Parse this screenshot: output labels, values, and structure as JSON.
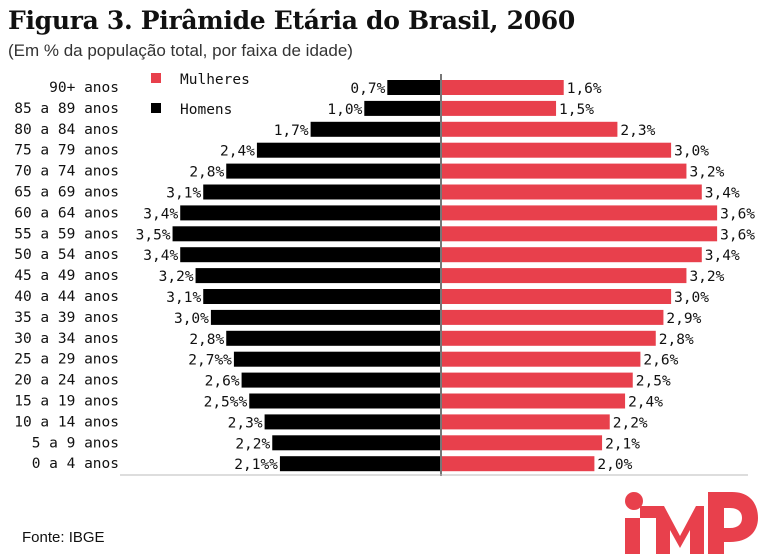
{
  "title": "Figura 3. Pirâmide Etária do Brasil, 2060",
  "subtitle": "(Em % da população total, por faixa de idade)",
  "source": "Fonte: IBGE",
  "colors": {
    "female": "#e8404c",
    "male": "#000000",
    "axis": "#777777",
    "logo": "#e8404c"
  },
  "logo": {
    "icon": "mp-logo-icon"
  },
  "chart_data": {
    "type": "bar",
    "orientation": "horizontal",
    "title": "Figura 3. Pirâmide Etária do Brasil, 2060",
    "legend": {
      "position": "top-left",
      "items": [
        "Mulheres",
        "Homens"
      ]
    },
    "categories": [
      "90+ anos",
      "85 a 89 anos",
      "80 a 84 anos",
      "75 a 79 anos",
      "70 a 74 anos",
      "65 a 69 anos",
      "60 a 64 anos",
      "55 a 59 anos",
      "50 a 54 anos",
      "45 a 49 anos",
      "40 a 44 anos",
      "35 a 39 anos",
      "30 a 34 anos",
      "25 a 29 anos",
      "20 a 24 anos",
      "15 a 19 anos",
      "10 a 14 anos",
      "5 a 9 anos",
      "0 a 4 anos"
    ],
    "xlim": [
      0,
      3.6
    ],
    "series": [
      {
        "name": "Mulheres",
        "values": [
          1.6,
          1.5,
          2.3,
          3.0,
          3.2,
          3.4,
          3.6,
          3.6,
          3.4,
          3.2,
          3.0,
          2.9,
          2.8,
          2.6,
          2.5,
          2.4,
          2.2,
          2.1,
          2.0
        ],
        "labels": [
          "1,6%",
          "1,5%",
          "2,3%",
          "3,0%",
          "3,2%",
          "3,4%",
          "3,6%",
          "3,6%",
          "3,4%",
          "3,2%",
          "3,0%",
          "2,9%",
          "2,8%",
          "2,6%",
          "2,5%",
          "2,4%",
          "2,2%",
          "2,1%",
          "2,0%"
        ]
      },
      {
        "name": "Homens",
        "values": [
          0.7,
          1.0,
          1.7,
          2.4,
          2.8,
          3.1,
          3.4,
          3.5,
          3.4,
          3.2,
          3.1,
          3.0,
          2.8,
          2.7,
          2.6,
          2.5,
          2.3,
          2.2,
          2.1
        ],
        "labels": [
          "0,7%",
          "1,0%",
          "1,7%",
          "2,4%",
          "2,8%",
          "3,1%",
          "3,4%",
          "3,5%",
          "3,4%",
          "3,2%",
          "3,1%",
          "3,0%",
          "2,8%",
          "2,7%%",
          "2,6%",
          "2,5%%",
          "2,3%",
          "2,2%",
          "2,1%%"
        ]
      }
    ]
  }
}
